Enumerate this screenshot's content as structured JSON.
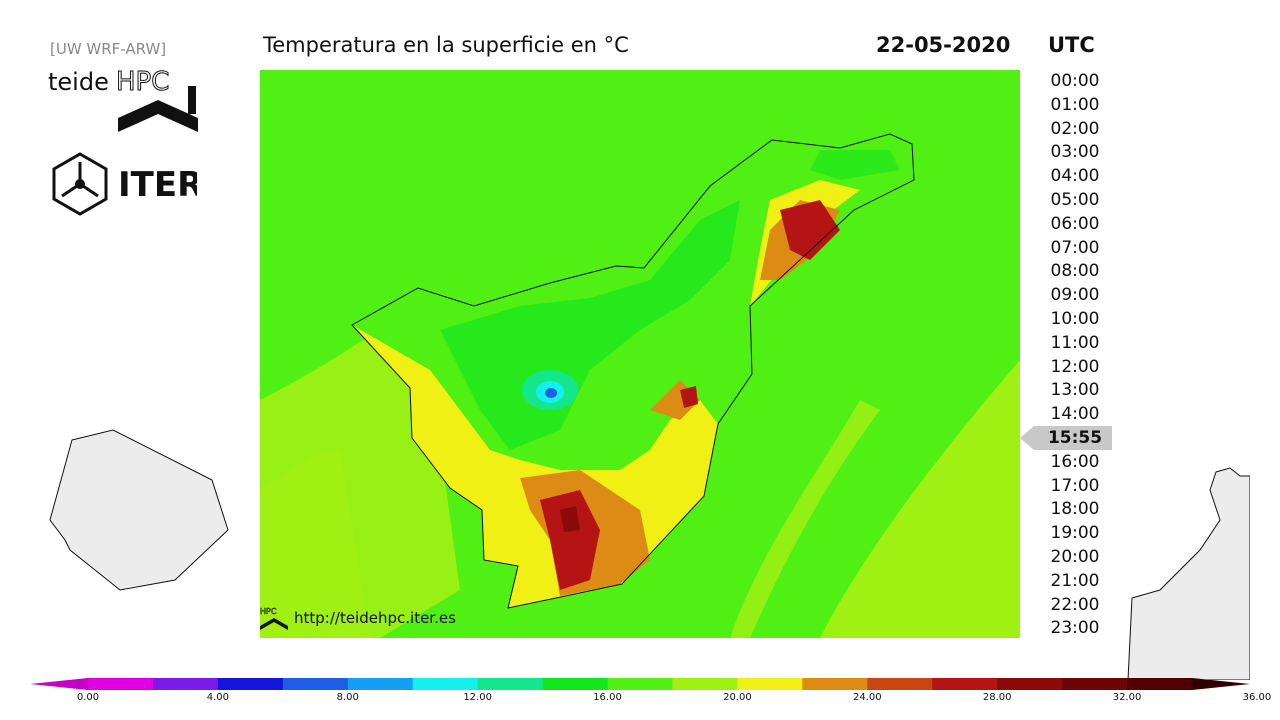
{
  "header": {
    "model_tag": "[UW WRF-ARW]",
    "title": "Temperatura en la superficie en °C",
    "date": "22-05-2020",
    "timezone": "UTC"
  },
  "branding": {
    "teide_text": "teide",
    "hpc_text": "HPC",
    "iter_text": "ITER"
  },
  "source_link": "http://teidehpc.iter.es",
  "times": [
    "00:00",
    "01:00",
    "02:00",
    "03:00",
    "04:00",
    "05:00",
    "06:00",
    "07:00",
    "08:00",
    "09:00",
    "10:00",
    "11:00",
    "12:00",
    "13:00",
    "14:00",
    "15:55",
    "16:00",
    "17:00",
    "18:00",
    "19:00",
    "20:00",
    "21:00",
    "22:00",
    "23:00"
  ],
  "current_time": "15:55",
  "colorbar": {
    "colors": [
      "#c600c6",
      "#e000e0",
      "#7a1ce6",
      "#1414dc",
      "#1e5fe6",
      "#14a0f0",
      "#14f0f0",
      "#14e68c",
      "#14e61e",
      "#50f014",
      "#a0f014",
      "#f0f014",
      "#dc8c14",
      "#c84614",
      "#b41414",
      "#8c0a0a",
      "#6e0505",
      "#500000",
      "#320000"
    ],
    "tick_labels": [
      "0.00",
      "4.00",
      "8.00",
      "12.00",
      "16.00",
      "20.00",
      "24.00",
      "28.00",
      "32.00",
      "36.00"
    ]
  }
}
